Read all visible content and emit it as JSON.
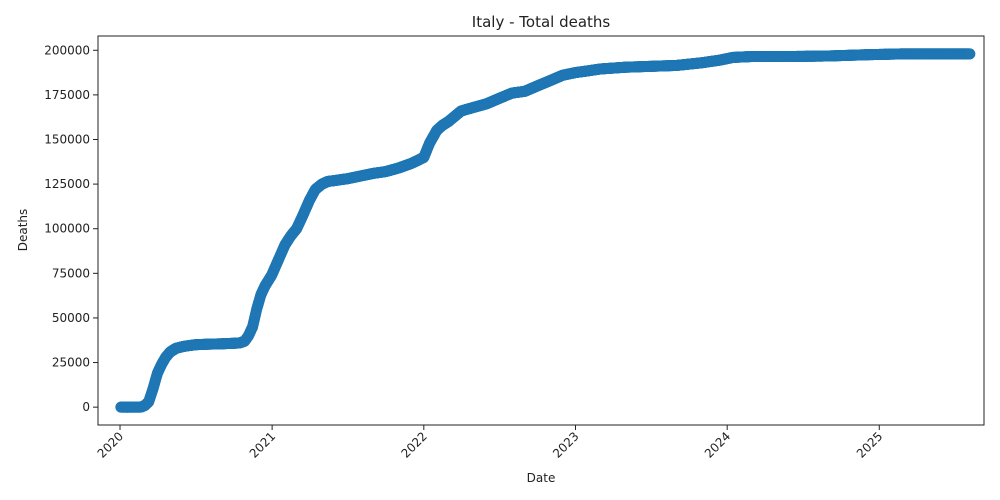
{
  "chart_data": {
    "type": "scatter",
    "title": "Italy - Total deaths",
    "xlabel": "Date",
    "ylabel": "Deaths",
    "x_ticks": [
      "2020",
      "2021",
      "2022",
      "2023",
      "2024",
      "2025"
    ],
    "y_ticks": [
      "0",
      "25000",
      "50000",
      "75000",
      "100000",
      "125000",
      "150000",
      "175000",
      "200000"
    ],
    "xlim": [
      "2019-11-09",
      "2025-09-10"
    ],
    "ylim": [
      -10000,
      208000
    ],
    "grid": false,
    "legend": "none",
    "marker_color": "#1f77b4",
    "series": [
      {
        "x": [
          "2020-01-03",
          "2020-02-20",
          "2020-03-01",
          "2020-03-10",
          "2020-03-20",
          "2020-03-31",
          "2020-04-10",
          "2020-04-20",
          "2020-05-01",
          "2020-05-15",
          "2020-06-01",
          "2020-06-15",
          "2020-07-01",
          "2020-08-01",
          "2020-09-01",
          "2020-10-01",
          "2020-10-15",
          "2020-10-27",
          "2020-11-05",
          "2020-11-15",
          "2020-11-25",
          "2020-12-05",
          "2020-12-15",
          "2020-12-31",
          "2021-01-15",
          "2021-02-01",
          "2021-02-15",
          "2021-03-01",
          "2021-03-15",
          "2021-04-01",
          "2021-04-15",
          "2021-05-01",
          "2021-05-15",
          "2021-06-01",
          "2021-06-15",
          "2021-07-01",
          "2021-08-01",
          "2021-09-01",
          "2021-10-01",
          "2021-11-01",
          "2021-12-01",
          "2021-12-15",
          "2022-01-01",
          "2022-01-15",
          "2022-02-01",
          "2022-02-15",
          "2022-03-01",
          "2022-04-01",
          "2022-05-01",
          "2022-06-01",
          "2022-07-01",
          "2022-08-01",
          "2022-09-01",
          "2022-10-01",
          "2022-11-01",
          "2022-12-01",
          "2023-01-01",
          "2023-02-01",
          "2023-03-01",
          "2023-05-01",
          "2023-07-01",
          "2023-09-01",
          "2023-11-01",
          "2023-12-15",
          "2024-01-15",
          "2024-03-01",
          "2024-06-01",
          "2024-09-01",
          "2024-12-01",
          "2025-03-01",
          "2025-06-01",
          "2025-08-07"
        ],
        "y": [
          0,
          0,
          1000,
          3000,
          10000,
          19000,
          24000,
          28000,
          31000,
          33000,
          34000,
          34500,
          35000,
          35300,
          35500,
          35800,
          36000,
          37000,
          40000,
          45000,
          55000,
          63000,
          68000,
          74000,
          82000,
          91000,
          96000,
          100000,
          107000,
          116000,
          122000,
          125000,
          126500,
          127000,
          127500,
          128000,
          129500,
          131000,
          132000,
          134000,
          136500,
          138000,
          140000,
          148000,
          155000,
          158000,
          160000,
          166000,
          168000,
          170000,
          173000,
          176000,
          177000,
          180000,
          183000,
          186000,
          187500,
          188500,
          189500,
          190500,
          191000,
          191500,
          193000,
          194500,
          196000,
          196500,
          196500,
          196800,
          197500,
          198000,
          198000,
          198000
        ]
      }
    ]
  }
}
